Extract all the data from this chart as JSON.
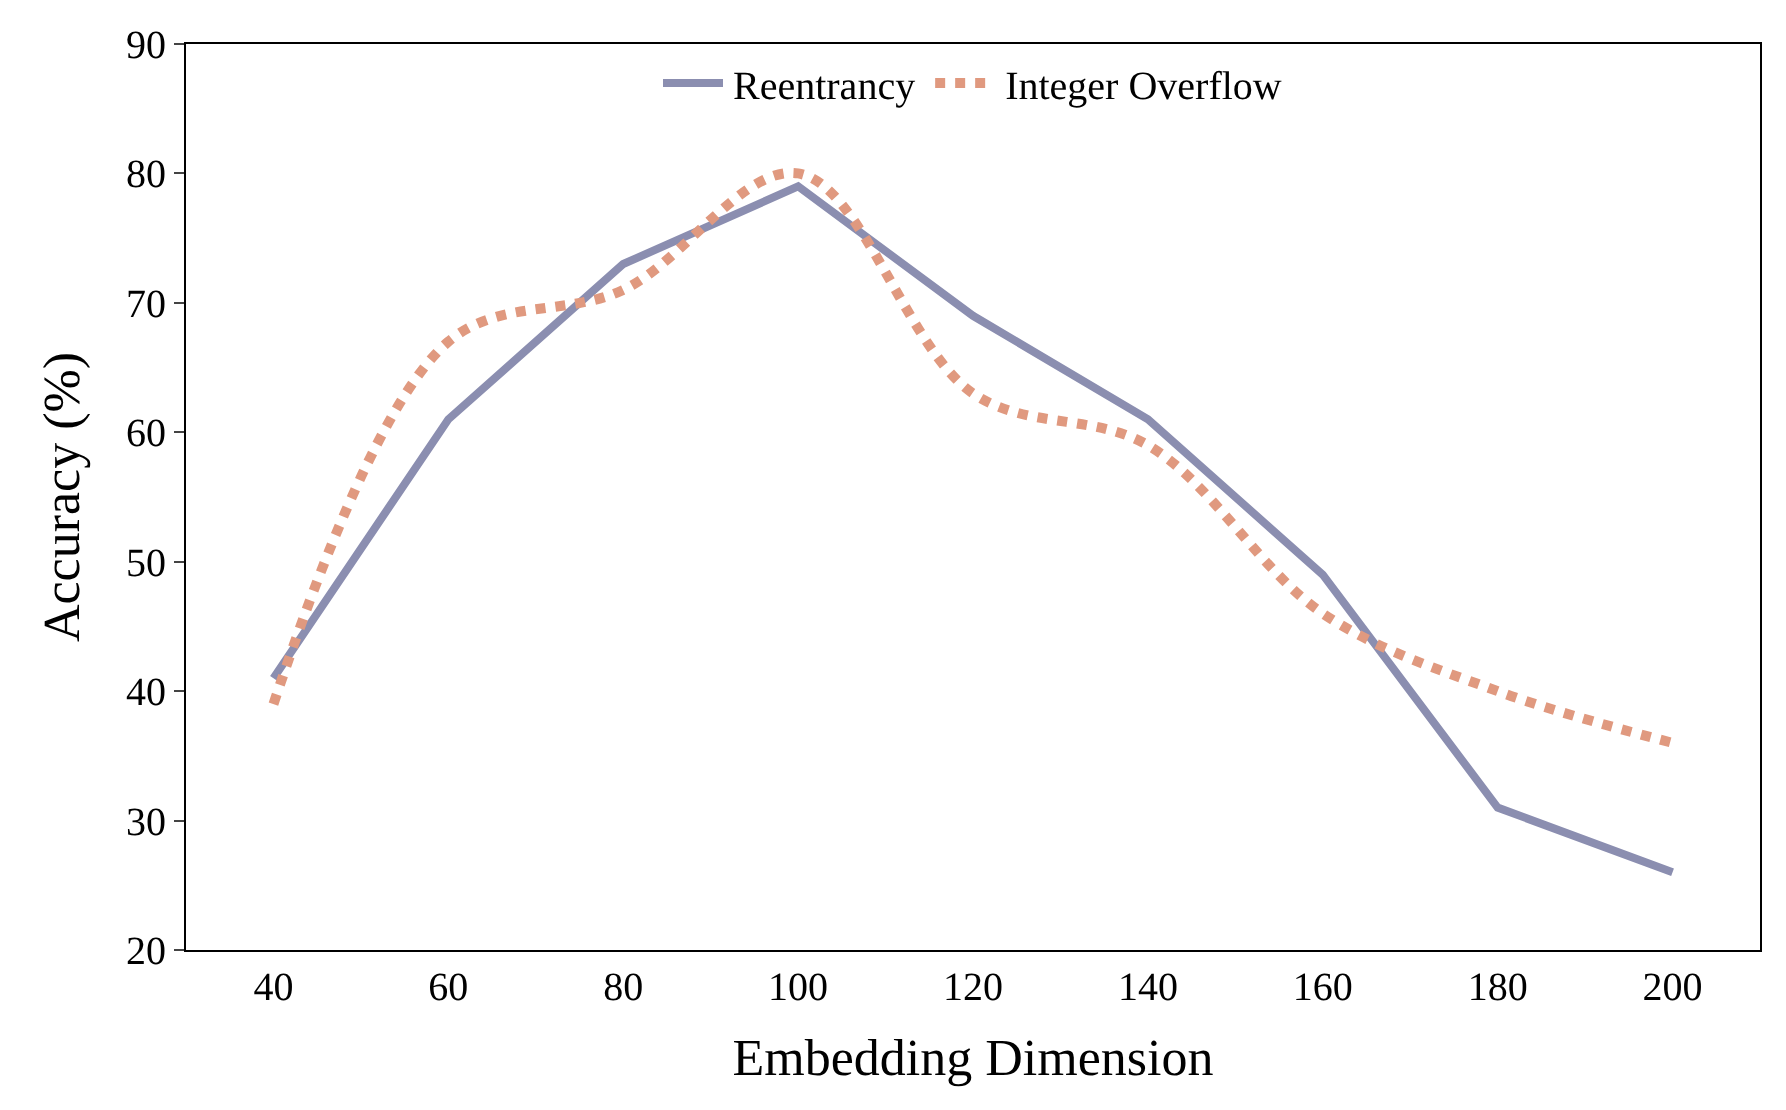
{
  "chart_data": {
    "type": "line",
    "xlabel": "Embedding Dimension",
    "ylabel": "Accuracy (%)",
    "categories": [
      "40",
      "60",
      "80",
      "100",
      "120",
      "140",
      "160",
      "180",
      "200"
    ],
    "series": [
      {
        "name": "Reentrancy",
        "color": "#8b8eb0",
        "values": [
          41,
          61,
          73,
          79,
          69,
          61,
          49,
          31,
          26
        ],
        "line_style": "solid"
      },
      {
        "name": "Integer Overflow",
        "color": "#e0997f",
        "values": [
          39,
          67,
          71,
          80,
          63,
          59,
          46,
          40,
          36
        ],
        "line_style": "dotted"
      }
    ],
    "ylim": [
      20,
      90
    ],
    "yticks": [
      20,
      30,
      40,
      50,
      60,
      70,
      80,
      90
    ],
    "legend": "top",
    "marker": "none"
  }
}
